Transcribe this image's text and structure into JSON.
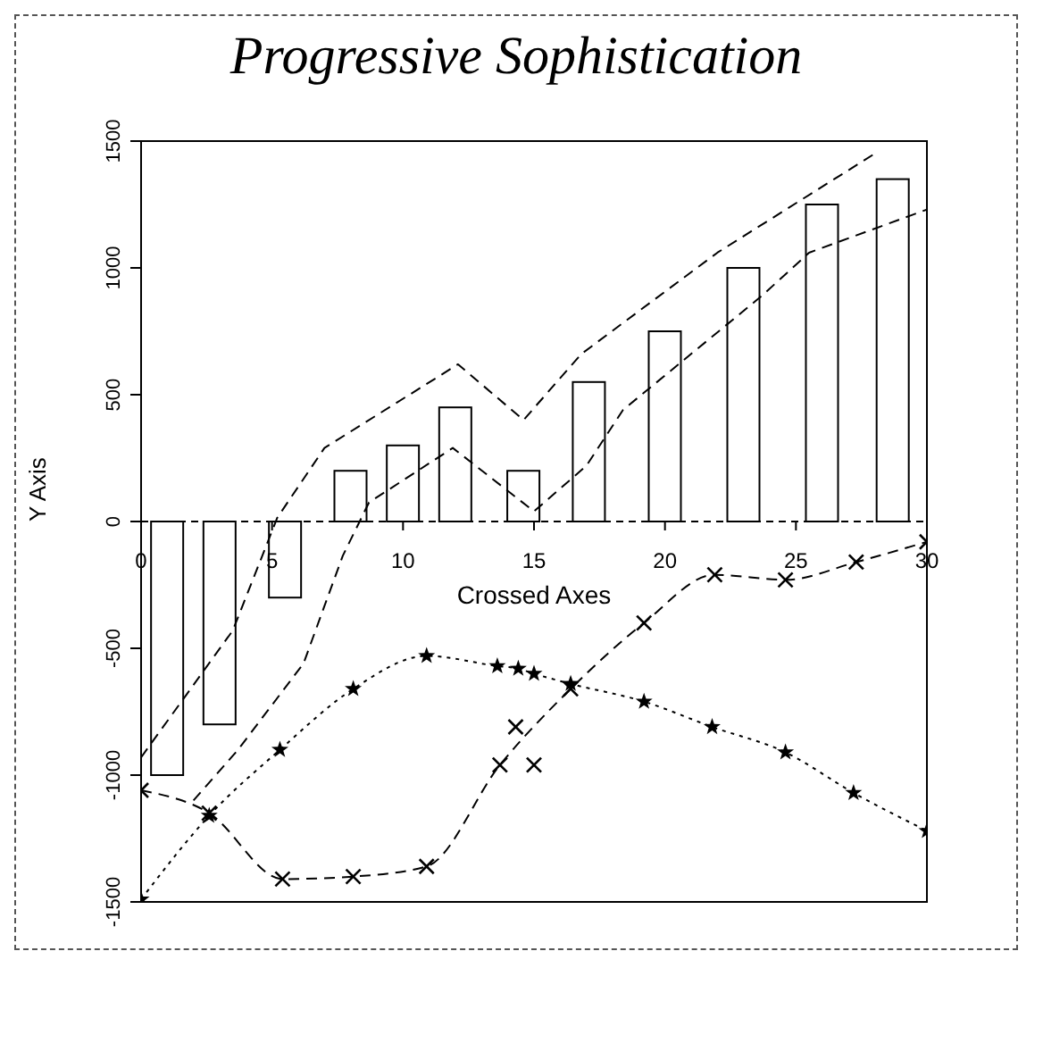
{
  "chart_data": {
    "type": "bar",
    "title": "Progressive Sophistication",
    "xlabel": "Crossed Axes",
    "ylabel": "Y Axis",
    "xlim": [
      0,
      30
    ],
    "xticks": [
      0,
      5,
      10,
      15,
      20,
      25,
      30
    ],
    "ylim": [
      -1500,
      1500
    ],
    "yticks": [
      -1500,
      -1000,
      -500,
      0,
      500,
      1000,
      1500
    ],
    "series": [
      {
        "color": "#000000",
        "x": [
          1,
          3,
          5.5,
          8,
          10,
          12,
          14.6,
          17.1,
          20,
          23,
          26,
          28.7
        ],
        "values": [
          -1000,
          -800,
          -300,
          200,
          300,
          450,
          200,
          550,
          750,
          1000,
          1250,
          1350
        ]
      },
      {
        "type": "line",
        "color": "#000000",
        "line_style": "dashed",
        "marker": "none",
        "x": [
          0,
          3.5,
          5.2,
          7,
          12.1,
          14.6,
          16.8,
          22,
          28
        ],
        "values": [
          -930,
          -430,
          15,
          290,
          620,
          400,
          660,
          1060,
          1450
        ]
      },
      {
        "type": "line",
        "color": "#000000",
        "line_style": "dashed",
        "marker": "none",
        "x": [
          2,
          3.7,
          6.2,
          7.7,
          8.7,
          11.9,
          15,
          17,
          18.4,
          23.7,
          25.5,
          30
        ],
        "values": [
          -1100,
          -900,
          -560,
          -135,
          75,
          290,
          40,
          220,
          440,
          890,
          1060,
          1230
        ]
      },
      {
        "type": "line",
        "color": "#000000",
        "line_style": "dotted",
        "marker": "star",
        "x": [
          0,
          2.6,
          5.3,
          8.1,
          10.9,
          13.6,
          14.4,
          15,
          16.4,
          19.2,
          21.8,
          24.6,
          27.2,
          30
        ],
        "values": [
          -1490,
          -1160,
          -900,
          -660,
          -530,
          -570,
          -580,
          -600,
          -640,
          -710,
          -810,
          -910,
          -1070,
          -1220
        ]
      },
      {
        "type": "line",
        "color": "#000000",
        "line_style": "dashed",
        "marker": "cross",
        "x": [
          0,
          2.6,
          5.4,
          8.1,
          10.9,
          13.7,
          16.4,
          19.2,
          21.9,
          24.6,
          27.3,
          30
        ],
        "values": [
          -1060,
          -1150,
          -1410,
          -1400,
          -1360,
          -960,
          -660,
          -400,
          -210,
          -230,
          -160,
          -80
        ]
      },
      {
        "type": "scatter",
        "color": "#000000",
        "marker": "cross",
        "x": [
          14.3,
          15
        ],
        "values": [
          -810,
          -960
        ]
      }
    ]
  }
}
